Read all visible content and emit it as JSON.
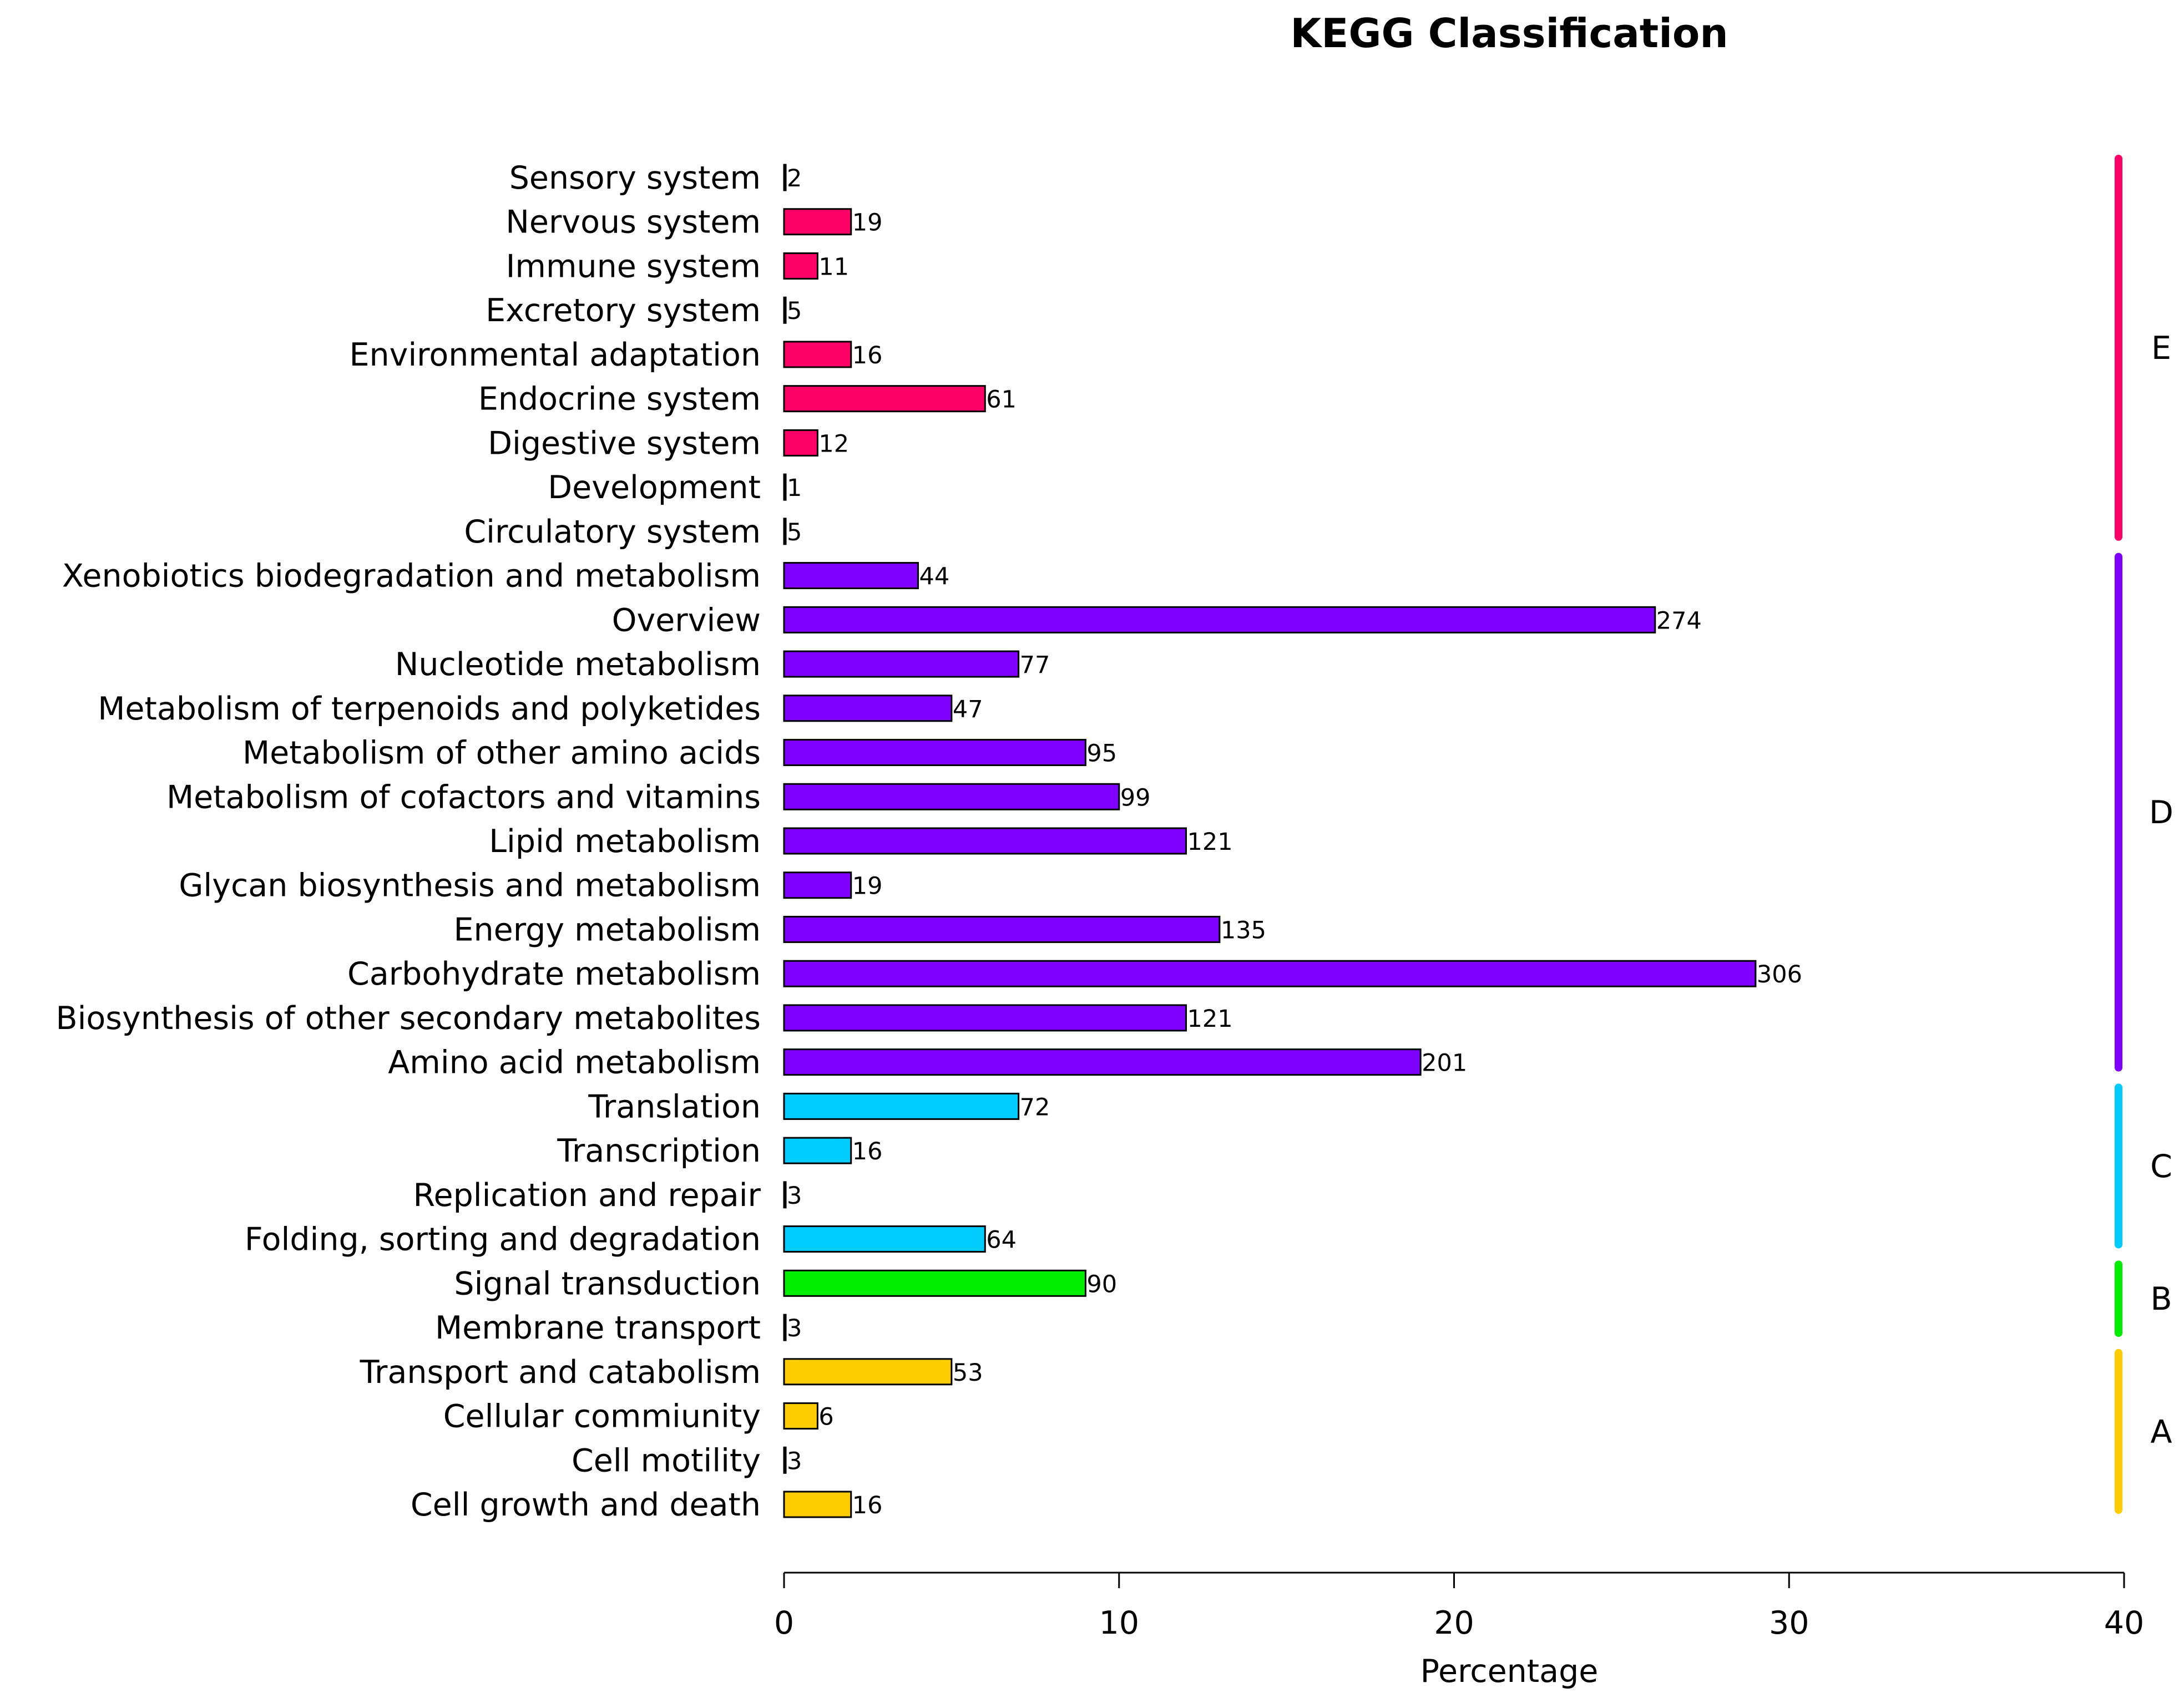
{
  "chart_data": {
    "type": "bar",
    "orientation": "horizontal",
    "title": "KEGG Classification",
    "xlabel": "Percentage",
    "ylabel": "",
    "xlim": [
      0,
      40
    ],
    "xticks": [
      "0",
      "10",
      "20",
      "30",
      "40"
    ],
    "grid": false,
    "group_colors": {
      "A": "#FFCC00",
      "B": "#00EE00",
      "C": "#00CCFF",
      "D": "#7F00FF",
      "E": "#FF0066"
    },
    "groups": [
      {
        "name": "A",
        "label": "A"
      },
      {
        "name": "B",
        "label": "B"
      },
      {
        "name": "C",
        "label": "C"
      },
      {
        "name": "D",
        "label": "D"
      },
      {
        "name": "E",
        "label": "E"
      }
    ],
    "categories": [
      {
        "label": "Cell growth and death",
        "count_label": "16",
        "percentage": 2.0,
        "group": "A"
      },
      {
        "label": "Cell motility",
        "count_label": "3",
        "percentage": 0.05,
        "group": "A"
      },
      {
        "label": "Cellular commiunity",
        "count_label": "6",
        "percentage": 1.0,
        "group": "A"
      },
      {
        "label": "Transport and catabolism",
        "count_label": "53",
        "percentage": 5.0,
        "group": "A"
      },
      {
        "label": "Membrane transport",
        "count_label": "3",
        "percentage": 0.05,
        "group": "B"
      },
      {
        "label": "Signal transduction",
        "count_label": "90",
        "percentage": 9.0,
        "group": "B"
      },
      {
        "label": "Folding, sorting and degradation",
        "count_label": "64",
        "percentage": 6.0,
        "group": "C"
      },
      {
        "label": "Replication and repair",
        "count_label": "3",
        "percentage": 0.05,
        "group": "C"
      },
      {
        "label": "Transcription",
        "count_label": "16",
        "percentage": 2.0,
        "group": "C"
      },
      {
        "label": "Translation",
        "count_label": "72",
        "percentage": 7.0,
        "group": "C"
      },
      {
        "label": "Amino acid metabolism",
        "count_label": "201",
        "percentage": 19.0,
        "group": "D"
      },
      {
        "label": "Biosynthesis of other secondary metabolites",
        "count_label": "121",
        "percentage": 12.0,
        "group": "D"
      },
      {
        "label": "Carbohydrate metabolism",
        "count_label": "306",
        "percentage": 29.0,
        "group": "D"
      },
      {
        "label": "Energy metabolism",
        "count_label": "135",
        "percentage": 13.0,
        "group": "D"
      },
      {
        "label": "Glycan biosynthesis and metabolism",
        "count_label": "19",
        "percentage": 2.0,
        "group": "D"
      },
      {
        "label": "Lipid metabolism",
        "count_label": "121",
        "percentage": 12.0,
        "group": "D"
      },
      {
        "label": "Metabolism of cofactors and vitamins",
        "count_label": "99",
        "percentage": 10.0,
        "group": "D"
      },
      {
        "label": "Metabolism of other amino acids",
        "count_label": "95",
        "percentage": 9.0,
        "group": "D"
      },
      {
        "label": "Metabolism of terpenoids and polyketides",
        "count_label": "47",
        "percentage": 5.0,
        "group": "D"
      },
      {
        "label": "Nucleotide metabolism",
        "count_label": "77",
        "percentage": 7.0,
        "group": "D"
      },
      {
        "label": "Overview",
        "count_label": "274",
        "percentage": 26.0,
        "group": "D"
      },
      {
        "label": "Xenobiotics biodegradation and metabolism",
        "count_label": "44",
        "percentage": 4.0,
        "group": "D"
      },
      {
        "label": "Circulatory system",
        "count_label": "5",
        "percentage": 0.05,
        "group": "E"
      },
      {
        "label": "Development",
        "count_label": "1",
        "percentage": 0.05,
        "group": "E"
      },
      {
        "label": "Digestive system",
        "count_label": "12",
        "percentage": 1.0,
        "group": "E"
      },
      {
        "label": "Endocrine system",
        "count_label": "61",
        "percentage": 6.0,
        "group": "E"
      },
      {
        "label": "Environmental adaptation",
        "count_label": "16",
        "percentage": 2.0,
        "group": "E"
      },
      {
        "label": "Excretory system",
        "count_label": "5",
        "percentage": 0.05,
        "group": "E"
      },
      {
        "label": "Immune system",
        "count_label": "11",
        "percentage": 1.0,
        "group": "E"
      },
      {
        "label": "Nervous system",
        "count_label": "19",
        "percentage": 2.0,
        "group": "E"
      },
      {
        "label": "Sensory system",
        "count_label": "2",
        "percentage": 0.05,
        "group": "E"
      }
    ]
  }
}
